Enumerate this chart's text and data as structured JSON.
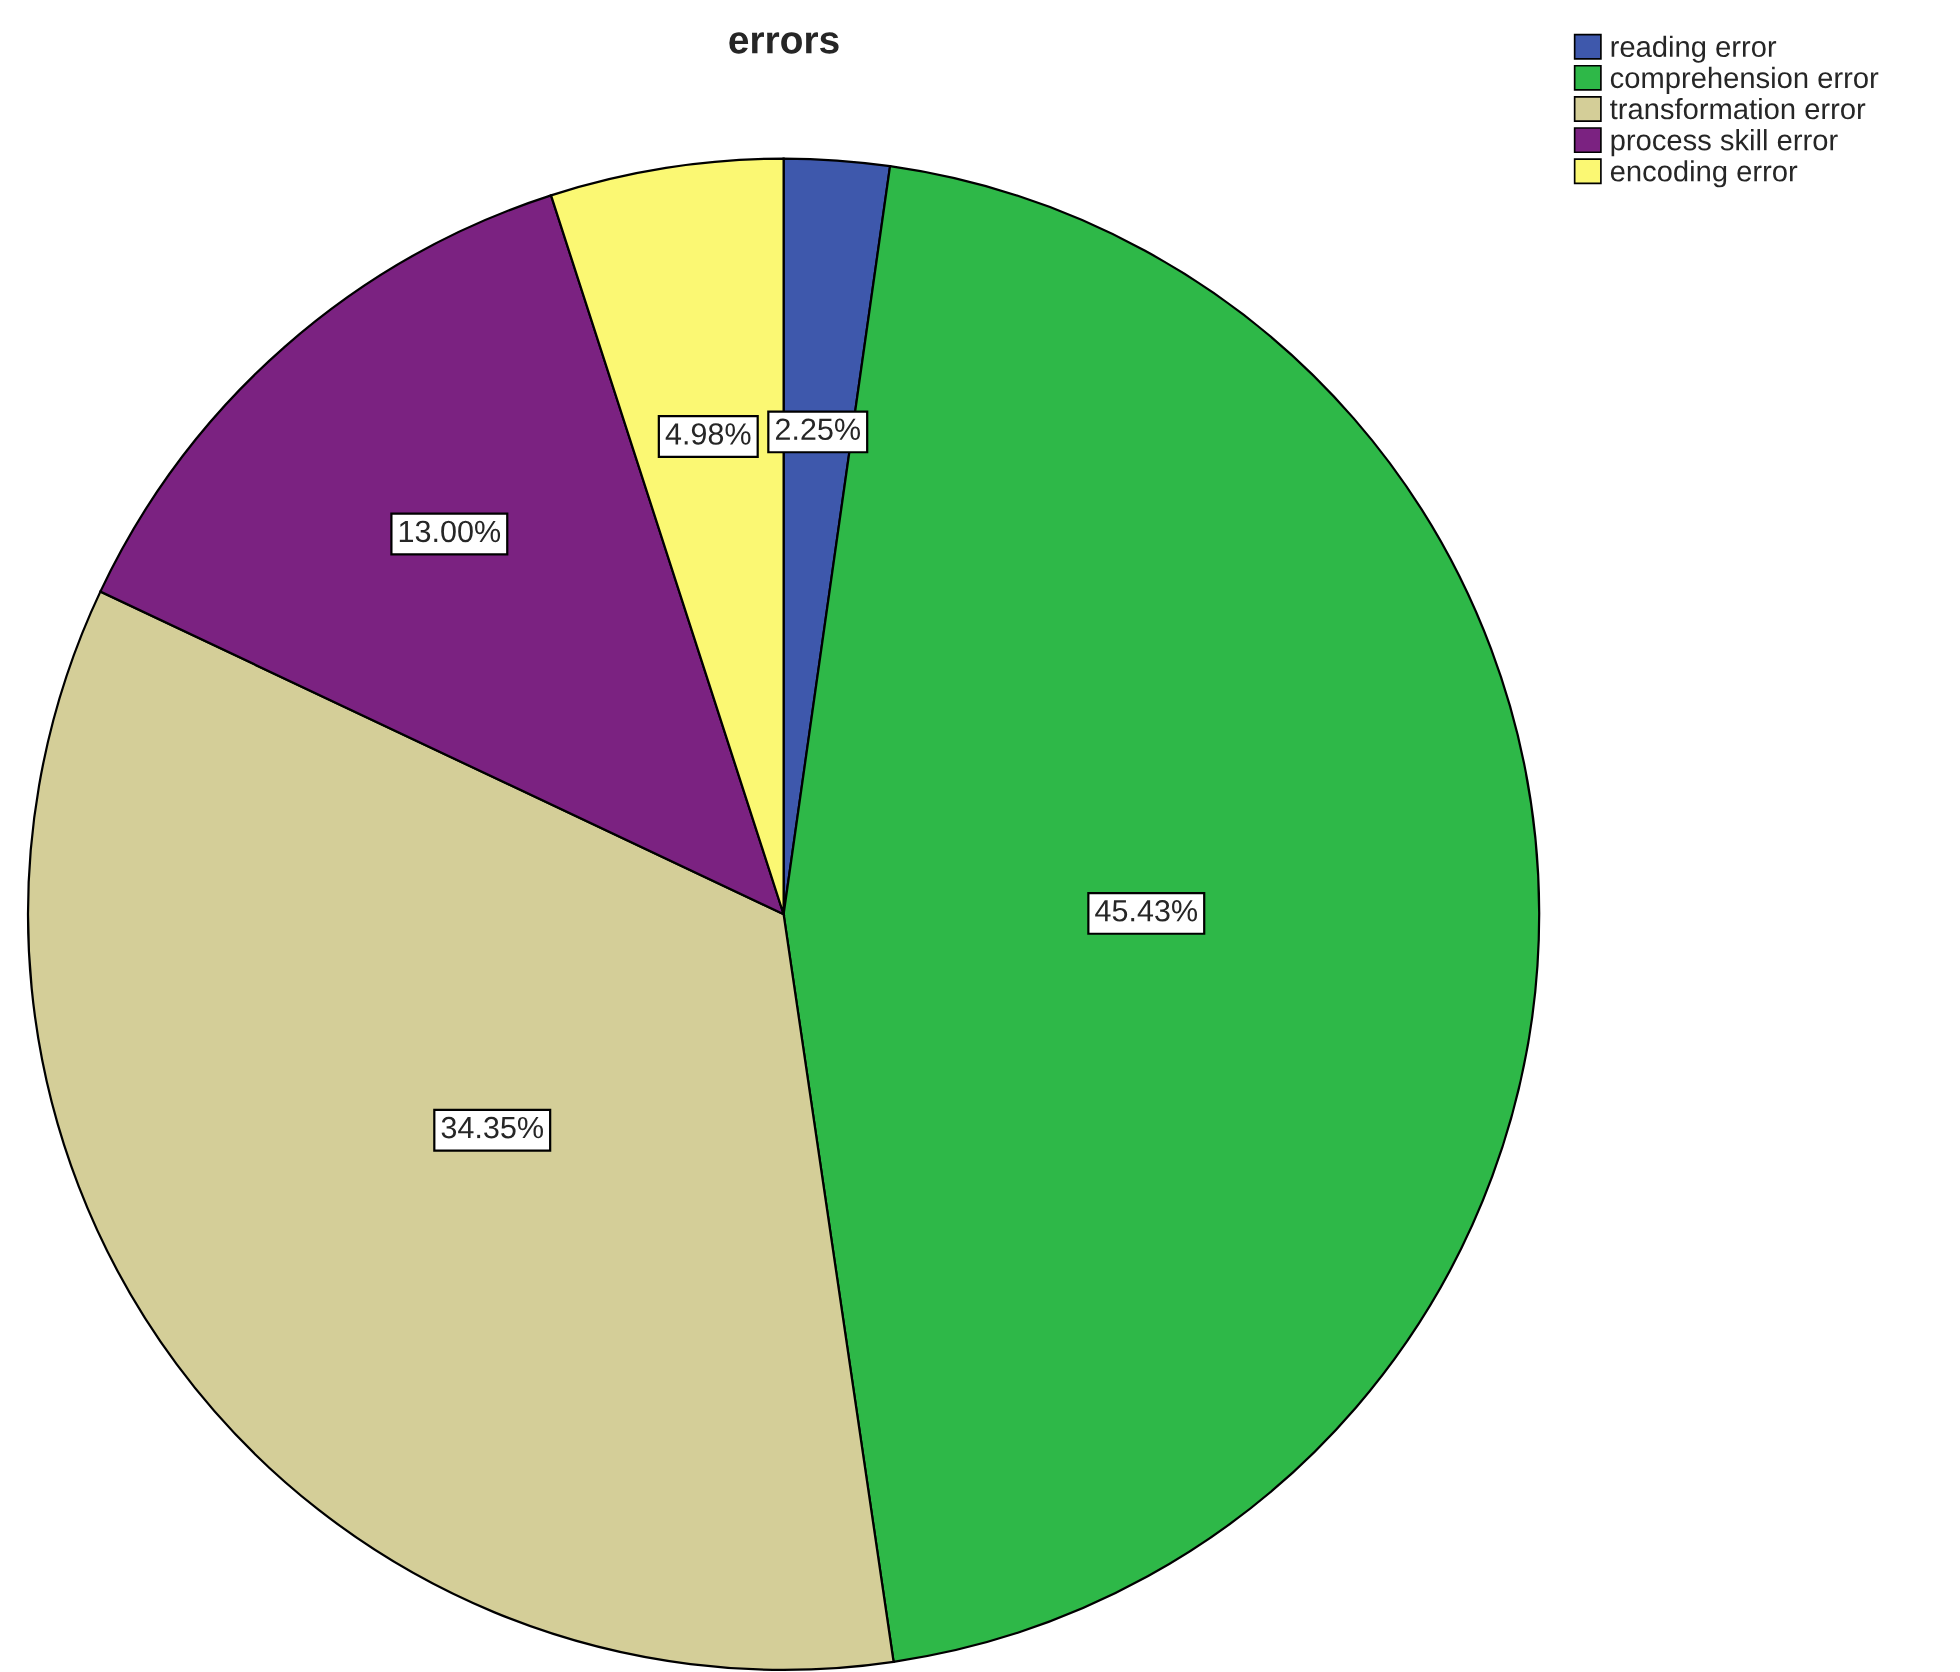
{
  "chart_data": {
    "type": "pie",
    "title": "errors",
    "categories": [
      "reading error",
      "comprehension error",
      "transformation error",
      "process skill error",
      "encoding error"
    ],
    "values": [
      2.25,
      45.43,
      34.35,
      13.0,
      4.98
    ],
    "value_labels": [
      "2.25%",
      "45.43%",
      "34.35%",
      "13.00%",
      "4.98%"
    ],
    "colors": [
      "#3e58ac",
      "#2eb848",
      "#d4ce98",
      "#7b2281",
      "#fbf873"
    ],
    "legend": "top right"
  }
}
